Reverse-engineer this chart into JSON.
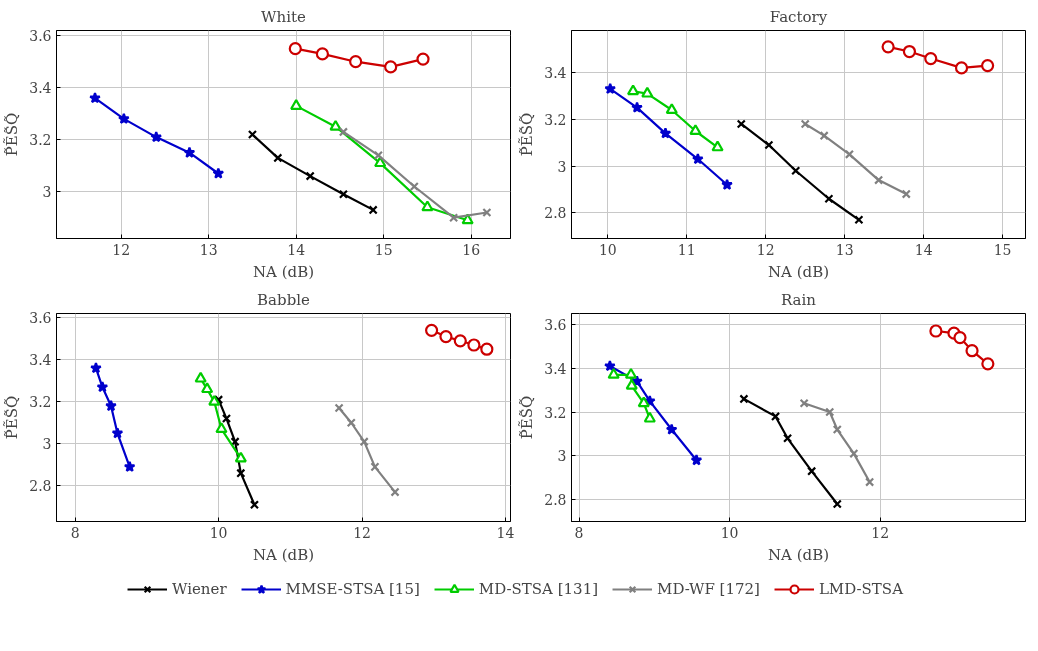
{
  "chart_data": [
    {
      "type": "line",
      "title": "White",
      "xlabel": "NA (dB)",
      "ylabel": "P̃ẼS̃Q̃",
      "xlim": [
        11.26,
        16.45
      ],
      "ylim": [
        2.82,
        3.62
      ],
      "xticks": [
        12,
        13,
        14,
        15,
        16
      ],
      "yticks": [
        3,
        3.2,
        3.4,
        3.6
      ],
      "grid": true,
      "legend": "bottom",
      "series": [
        {
          "name": "Wiener",
          "color": "#000000",
          "marker": "cross",
          "x": [
            13.5,
            13.79,
            14.16,
            14.54,
            14.88
          ],
          "values": [
            3.22,
            3.13,
            3.06,
            2.99,
            2.93
          ]
        },
        {
          "name": "MMSE-STSA [15]",
          "color": "#0000cc",
          "marker": "star",
          "x": [
            11.7,
            12.03,
            12.4,
            12.78,
            13.11
          ],
          "values": [
            3.36,
            3.28,
            3.21,
            3.15,
            3.07
          ]
        },
        {
          "name": "MD-STSA [131]",
          "color": "#00cc00",
          "marker": "triangle",
          "x": [
            14.0,
            14.45,
            14.96,
            15.5,
            15.96
          ],
          "values": [
            3.33,
            3.25,
            3.11,
            2.94,
            2.89
          ]
        },
        {
          "name": "MD-WF [172]",
          "color": "#808080",
          "marker": "cross",
          "x": [
            14.54,
            14.94,
            15.35,
            15.8,
            16.18
          ],
          "values": [
            3.23,
            3.14,
            3.02,
            2.9,
            2.92
          ]
        },
        {
          "name": "LMD-STSA",
          "color": "#cc0000",
          "marker": "circle",
          "x": [
            13.99,
            14.3,
            14.68,
            15.08,
            15.45
          ],
          "values": [
            3.55,
            3.53,
            3.5,
            3.48,
            3.51
          ]
        }
      ]
    },
    {
      "type": "line",
      "title": "Factory",
      "xlabel": "NA (dB)",
      "ylabel": "P̃ẼS̃Q̃",
      "xlim": [
        9.54,
        15.29
      ],
      "ylim": [
        2.69,
        3.58
      ],
      "xticks": [
        10,
        11,
        12,
        13,
        14,
        15
      ],
      "yticks": [
        2.8,
        3,
        3.2,
        3.4
      ],
      "grid": true,
      "series": [
        {
          "color": "#000000",
          "marker": "cross",
          "x": [
            11.69,
            12.04,
            12.38,
            12.8,
            13.18
          ],
          "values": [
            3.18,
            3.09,
            2.98,
            2.86,
            2.77
          ]
        },
        {
          "color": "#0000cc",
          "marker": "star",
          "x": [
            10.03,
            10.37,
            10.73,
            11.14,
            11.51
          ],
          "values": [
            3.33,
            3.25,
            3.14,
            3.03,
            2.92
          ]
        },
        {
          "color": "#00cc00",
          "marker": "triangle",
          "x": [
            10.32,
            10.5,
            10.81,
            11.11,
            11.39
          ],
          "values": [
            3.32,
            3.31,
            3.24,
            3.15,
            3.08
          ]
        },
        {
          "color": "#808080",
          "marker": "cross",
          "x": [
            12.5,
            12.74,
            13.06,
            13.43,
            13.78
          ],
          "values": [
            3.18,
            3.13,
            3.05,
            2.94,
            2.88
          ]
        },
        {
          "color": "#cc0000",
          "marker": "circle",
          "x": [
            13.55,
            13.82,
            14.09,
            14.48,
            14.81
          ],
          "values": [
            3.51,
            3.49,
            3.46,
            3.42,
            3.43
          ]
        }
      ]
    },
    {
      "type": "line",
      "title": "Babble",
      "xlabel": "NA (dB)",
      "ylabel": "P̃ẼS̃Q̃",
      "xlim": [
        7.74,
        14.07
      ],
      "ylim": [
        2.63,
        3.62
      ],
      "xticks": [
        8,
        10,
        12,
        14
      ],
      "yticks": [
        2.8,
        3,
        3.2,
        3.4,
        3.6
      ],
      "grid": true,
      "series": [
        {
          "color": "#000000",
          "marker": "cross",
          "x": [
            10.0,
            10.11,
            10.23,
            10.31,
            10.5
          ],
          "values": [
            3.21,
            3.12,
            3.01,
            2.86,
            2.71
          ]
        },
        {
          "color": "#0000cc",
          "marker": "star",
          "x": [
            8.29,
            8.38,
            8.5,
            8.59,
            8.76
          ],
          "values": [
            3.36,
            3.27,
            3.18,
            3.05,
            2.89
          ]
        },
        {
          "color": "#00cc00",
          "marker": "triangle",
          "x": [
            9.75,
            9.84,
            9.94,
            10.04,
            10.31
          ],
          "values": [
            3.31,
            3.26,
            3.2,
            3.07,
            2.93
          ]
        },
        {
          "color": "#808080",
          "marker": "cross",
          "x": [
            11.68,
            11.85,
            12.03,
            12.18,
            12.46
          ],
          "values": [
            3.17,
            3.1,
            3.01,
            2.89,
            2.77
          ]
        },
        {
          "color": "#cc0000",
          "marker": "circle",
          "x": [
            12.97,
            13.17,
            13.37,
            13.56,
            13.74
          ],
          "values": [
            3.54,
            3.51,
            3.49,
            3.47,
            3.45
          ]
        }
      ]
    },
    {
      "type": "line",
      "title": "Rain",
      "xlabel": "NA (dB)",
      "ylabel": "P̃ẼS̃Q̃",
      "xlim": [
        7.9,
        13.93
      ],
      "ylim": [
        2.7,
        3.65
      ],
      "xticks": [
        8,
        10,
        12
      ],
      "yticks": [
        2.8,
        3,
        3.2,
        3.4,
        3.6
      ],
      "grid": true,
      "series": [
        {
          "color": "#000000",
          "marker": "cross",
          "x": [
            10.19,
            10.61,
            10.77,
            11.09,
            11.43
          ],
          "values": [
            3.26,
            3.18,
            3.08,
            2.93,
            2.78
          ]
        },
        {
          "color": "#0000cc",
          "marker": "star",
          "x": [
            8.41,
            8.77,
            8.94,
            9.23,
            9.56
          ],
          "values": [
            3.41,
            3.34,
            3.25,
            3.12,
            2.98
          ]
        },
        {
          "color": "#00cc00",
          "marker": "triangle",
          "x": [
            8.46,
            8.69,
            8.7,
            8.86,
            8.94
          ],
          "values": [
            3.37,
            3.37,
            3.32,
            3.24,
            3.17
          ]
        },
        {
          "color": "#808080",
          "marker": "cross",
          "x": [
            10.99,
            11.33,
            11.43,
            11.65,
            11.86
          ],
          "values": [
            3.24,
            3.2,
            3.12,
            3.01,
            2.88
          ]
        },
        {
          "color": "#cc0000",
          "marker": "circle",
          "x": [
            12.74,
            12.98,
            13.06,
            13.22,
            13.43
          ],
          "values": [
            3.57,
            3.56,
            3.54,
            3.48,
            3.42
          ]
        }
      ]
    }
  ]
}
